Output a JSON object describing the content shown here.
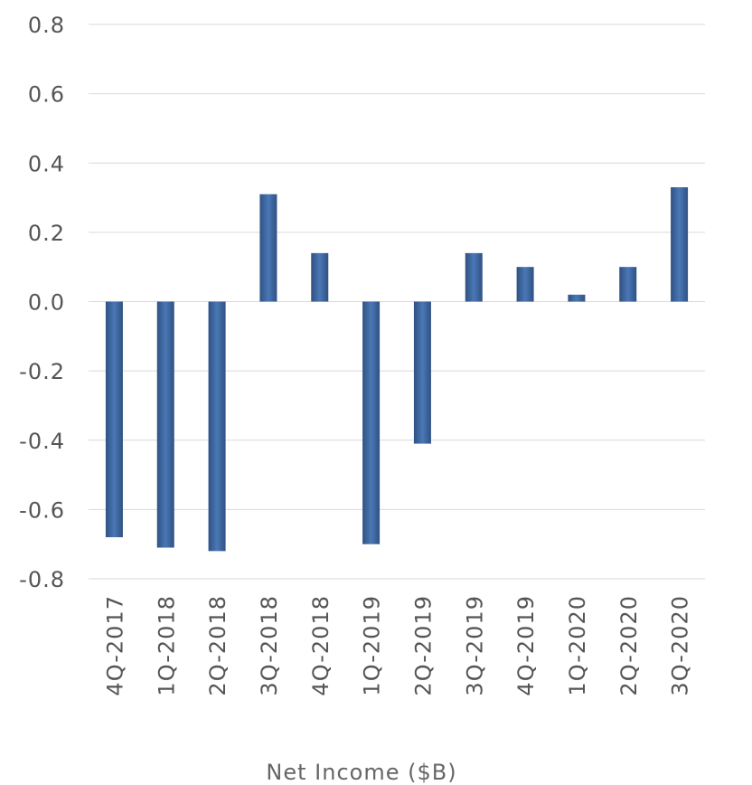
{
  "chart_data": {
    "type": "bar",
    "categories": [
      "4Q-2017",
      "1Q-2018",
      "2Q-2018",
      "3Q-2018",
      "4Q-2018",
      "1Q-2019",
      "2Q-2019",
      "3Q-2019",
      "4Q-2019",
      "1Q-2020",
      "2Q-2020",
      "3Q-2020"
    ],
    "values": [
      -0.68,
      -0.71,
      -0.72,
      0.31,
      0.14,
      -0.7,
      -0.41,
      0.14,
      0.1,
      0.02,
      0.1,
      0.33
    ],
    "title": "",
    "xlabel": "Net Income ($B)",
    "ylabel": "",
    "ylim": [
      -0.8,
      0.8
    ],
    "yticks": [
      0.8,
      0.6,
      0.4,
      0.2,
      0.0,
      -0.2,
      -0.4,
      -0.6,
      -0.8
    ],
    "ytick_labels": [
      "0.8",
      "0.6",
      "0.4",
      "0.2",
      "0.0",
      "-0.2",
      "-0.4",
      "-0.6",
      "-0.8"
    ],
    "grid": true,
    "legend": "none",
    "colors": {
      "bar_edge": "#2f5183",
      "bar_center": "#4a78b5",
      "grid": "#d9d9d9",
      "text": "#555555"
    }
  }
}
